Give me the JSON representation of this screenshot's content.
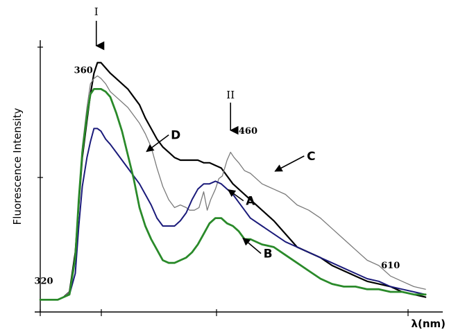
{
  "chart_data": {
    "type": "line",
    "ylabel": "Fluorescence Intensity",
    "xlabel": "λ(nm)",
    "xlim": [
      300,
      640
    ],
    "ylim": [
      0,
      100
    ],
    "x_grid": false,
    "y_grid": false,
    "peak_markers": [
      {
        "label": "I",
        "x": 348
      },
      {
        "label": "II",
        "x": 463
      }
    ],
    "wavelength_labels": [
      {
        "text": "320",
        "x": 303,
        "y": 8
      },
      {
        "text": "360",
        "x": 337,
        "y": 88
      },
      {
        "text": "460",
        "x": 478,
        "y": 65
      },
      {
        "text": "610",
        "x": 600,
        "y": 14
      }
    ],
    "series": [
      {
        "name": "D",
        "color": "#000000",
        "x": [
          300,
          315,
          320,
          325,
          330,
          333,
          336,
          340,
          343,
          346,
          349,
          352,
          356,
          360,
          365,
          370,
          375,
          380,
          385,
          390,
          395,
          400,
          405,
          410,
          415,
          420,
          425,
          430,
          435,
          440,
          445,
          450,
          455,
          460,
          465,
          470,
          475,
          480,
          490,
          500,
          510,
          520,
          530,
          540,
          550,
          560,
          570,
          580,
          590,
          600,
          610,
          620,
          630
        ],
        "y": [
          2,
          2,
          3,
          5,
          20,
          38,
          56,
          70,
          80,
          88,
          92,
          92,
          90,
          88,
          86,
          84,
          82,
          79,
          76,
          71,
          67,
          63,
          60,
          58,
          56,
          55,
          55,
          55,
          55,
          54,
          54,
          53,
          52,
          49,
          46,
          44,
          42,
          40,
          36,
          32,
          27,
          22,
          20,
          18,
          15,
          13,
          11,
          9,
          8,
          7,
          5,
          4,
          3
        ]
      },
      {
        "name": "C",
        "color": "#7a7a7a",
        "x": [
          300,
          315,
          320,
          325,
          330,
          333,
          336,
          340,
          343,
          346,
          349,
          352,
          356,
          360,
          365,
          370,
          375,
          380,
          385,
          390,
          395,
          400,
          405,
          410,
          415,
          420,
          425,
          428,
          432,
          436,
          440,
          443,
          446,
          450,
          453,
          456,
          460,
          463,
          466,
          470,
          475,
          480,
          490,
          500,
          510,
          520,
          530,
          540,
          550,
          560,
          570,
          580,
          590,
          600,
          610,
          620,
          630
        ],
        "y": [
          2,
          2,
          3,
          5,
          18,
          40,
          60,
          75,
          84,
          86,
          87,
          86,
          84,
          81,
          79,
          77,
          75,
          72,
          69,
          65,
          60,
          52,
          45,
          40,
          37,
          38,
          37,
          36,
          36,
          37,
          43,
          36,
          40,
          44,
          48,
          49,
          55,
          58,
          56,
          54,
          51,
          50,
          46,
          44,
          42,
          38,
          36,
          33,
          29,
          25,
          21,
          17,
          15,
          11,
          9,
          7,
          6
        ]
      },
      {
        "name": "A",
        "color": "#1a1a7a",
        "x": [
          300,
          315,
          320,
          325,
          330,
          333,
          336,
          340,
          343,
          346,
          349,
          352,
          356,
          360,
          365,
          370,
          375,
          380,
          385,
          390,
          395,
          400,
          405,
          410,
          415,
          420,
          425,
          430,
          435,
          440,
          445,
          450,
          455,
          460,
          465,
          470,
          475,
          480,
          490,
          500,
          510,
          520,
          530,
          540,
          550,
          560,
          570,
          580,
          590,
          600,
          610,
          620,
          630
        ],
        "y": [
          2,
          2,
          3,
          4,
          12,
          30,
          45,
          56,
          62,
          67,
          67,
          66,
          63,
          61,
          58,
          55,
          52,
          49,
          46,
          42,
          38,
          33,
          30,
          30,
          30,
          32,
          35,
          40,
          44,
          46,
          46,
          47,
          46,
          44,
          42,
          39,
          36,
          33,
          30,
          27,
          24,
          22,
          20,
          18,
          16,
          14,
          12,
          10,
          9,
          7,
          6,
          5,
          4
        ]
      },
      {
        "name": "B",
        "color": "#2a8a2a",
        "x": [
          300,
          315,
          320,
          325,
          330,
          333,
          336,
          340,
          343,
          346,
          349,
          352,
          356,
          360,
          365,
          370,
          375,
          380,
          385,
          390,
          395,
          400,
          405,
          410,
          415,
          420,
          425,
          430,
          435,
          440,
          445,
          450,
          455,
          460,
          465,
          470,
          475,
          480,
          490,
          500,
          510,
          520,
          530,
          540,
          550,
          560,
          570,
          580,
          590,
          600,
          610,
          620,
          630
        ],
        "y": [
          2,
          2,
          3,
          4,
          18,
          40,
          58,
          72,
          80,
          82,
          82,
          82,
          81,
          79,
          73,
          66,
          57,
          48,
          37,
          30,
          25,
          21,
          17,
          16,
          16,
          17,
          18,
          20,
          23,
          27,
          31,
          33,
          33,
          31,
          30,
          28,
          25,
          25,
          23,
          22,
          19,
          16,
          13,
          10,
          8,
          7,
          7,
          6,
          6,
          5,
          5,
          4,
          4
        ]
      }
    ],
    "series_labels": [
      {
        "text": "D",
        "x": 416,
        "y": 63
      },
      {
        "text": "C",
        "x": 532,
        "y": 55
      },
      {
        "text": "A",
        "x": 480,
        "y": 38
      },
      {
        "text": "B",
        "x": 495,
        "y": 18
      }
    ]
  }
}
